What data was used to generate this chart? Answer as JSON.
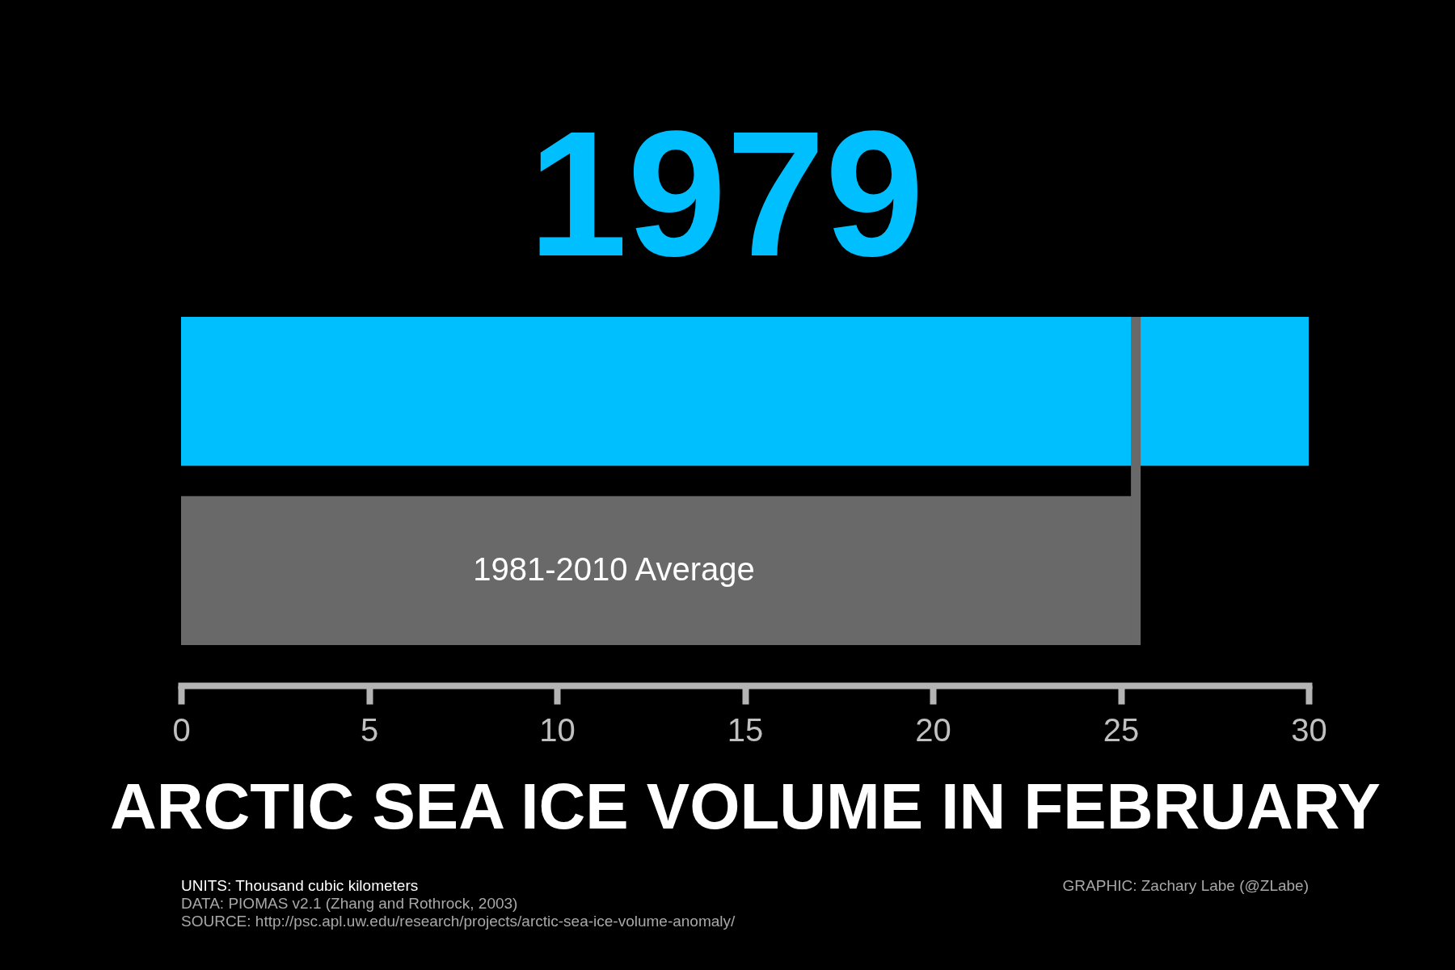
{
  "chart_data": {
    "type": "bar",
    "orientation": "horizontal",
    "title": "1979",
    "xlabel": "ARCTIC SEA ICE VOLUME IN FEBRUARY",
    "categories": [
      null,
      "1981-2010 Average"
    ],
    "values": [
      30.0,
      25.4
    ],
    "colors": [
      "#00bfff",
      "#696969"
    ],
    "xlim": [
      0,
      30
    ],
    "xticks": [
      0,
      5,
      10,
      15,
      20,
      25,
      30
    ],
    "tick_labels": "x",
    "ref_lines": [
      {
        "axis": "x",
        "value": 25.4,
        "color": "#696969"
      }
    ],
    "annotations": [
      "UNITS: Thousand cubic kilometers",
      "DATA: PIOMAS v2.1 (Zhang and Rothrock, 2003)",
      "SOURCE: http://psc.apl.uw.edu/research/projects/arctic-sea-ice-volume-anomaly/",
      "GRAPHIC: Zachary Labe (@ZLabe)"
    ]
  }
}
